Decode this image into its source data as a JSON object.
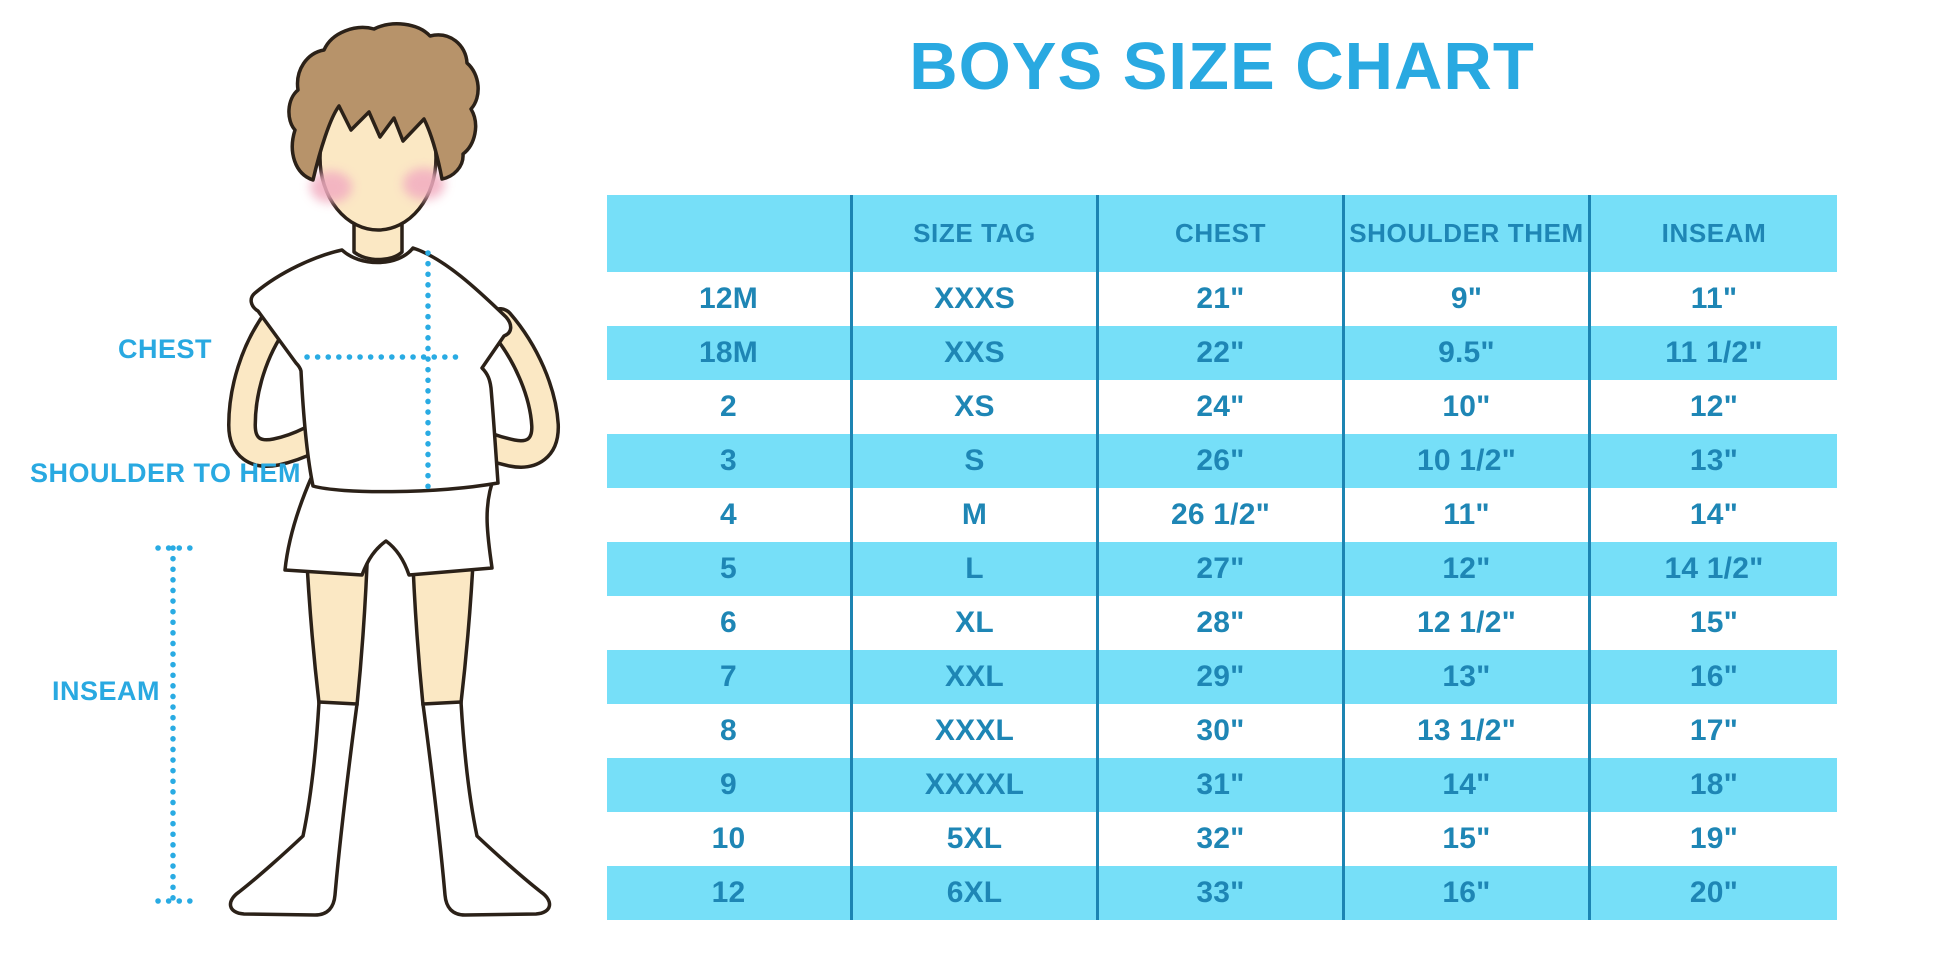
{
  "title": "BOYS SIZE CHART",
  "figure": {
    "labels": {
      "chest": "CHEST",
      "shoulder_to_hem": "SHOULDER TO HEM",
      "inseam": "INSEAM"
    }
  },
  "chart_data": {
    "type": "table",
    "title": "BOYS SIZE CHART",
    "columns": [
      "",
      "SIZE TAG",
      "CHEST",
      "SHOULDER THEM",
      "INSEAM"
    ],
    "rows": [
      [
        "12M",
        "XXXS",
        "21\"",
        "9\"",
        "11\""
      ],
      [
        "18M",
        "XXS",
        "22\"",
        "9.5\"",
        "11 1/2\""
      ],
      [
        "2",
        "XS",
        "24\"",
        "10\"",
        "12\""
      ],
      [
        "3",
        "S",
        "26\"",
        "10 1/2\"",
        "13\""
      ],
      [
        "4",
        "M",
        "26 1/2\"",
        "11\"",
        "14\""
      ],
      [
        "5",
        "L",
        "27\"",
        "12\"",
        "14 1/2\""
      ],
      [
        "6",
        "XL",
        "28\"",
        "12 1/2\"",
        "15\""
      ],
      [
        "7",
        "XXL",
        "29\"",
        "13\"",
        "16\""
      ],
      [
        "8",
        "XXXL",
        "30\"",
        "13 1/2\"",
        "17\""
      ],
      [
        "9",
        "XXXXL",
        "31\"",
        "14\"",
        "18\""
      ],
      [
        "10",
        "5XL",
        "32\"",
        "15\"",
        "19\""
      ],
      [
        "12",
        "6XL",
        "33\"",
        "16\"",
        "20\""
      ]
    ],
    "layout": {
      "stripe_pattern": "header cyan, then rows alternate white/cyan starting white",
      "grid": "vertical separators only, no outer border"
    }
  },
  "colors": {
    "accent_blue": "#29A9E1",
    "dotted_line": "#29ABE3",
    "stripe_cyan": "#76DFF8",
    "table_text": "#1E86B5",
    "column_separator": "#1C84B2",
    "skin": "#FBE8C4",
    "hair": "#B7936A",
    "outline": "#2B2118",
    "cheek_pink": "#F2ADC1",
    "background": "#FFFFFF"
  }
}
